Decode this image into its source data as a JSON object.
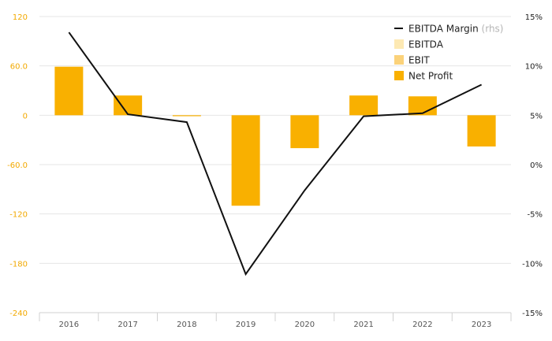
{
  "chart_data": {
    "type": "bar",
    "categories": [
      "2016",
      "2017",
      "2018",
      "2019",
      "2020",
      "2021",
      "2022",
      "2023"
    ],
    "series": [
      {
        "name": "EBITDA",
        "type": "bar",
        "axis": "left",
        "color": "#fde9b3",
        "values": [
          null,
          null,
          null,
          null,
          null,
          null,
          null,
          null
        ]
      },
      {
        "name": "EBIT",
        "type": "bar",
        "axis": "left",
        "color": "#fbd27a",
        "values": [
          null,
          null,
          null,
          null,
          null,
          null,
          null,
          null
        ]
      },
      {
        "name": "Net Profit",
        "type": "bar",
        "axis": "left",
        "color": "#f9b000",
        "values": [
          59,
          24,
          -1,
          -110,
          -40,
          24,
          23,
          -38
        ]
      },
      {
        "name": "EBITDA Margin",
        "type": "line",
        "axis": "right",
        "color": "#111111",
        "values": [
          13.4,
          5.1,
          4.3,
          -11.1,
          -2.6,
          4.9,
          5.2,
          8.1
        ]
      }
    ],
    "legend_note": "(rhs)",
    "y_left": {
      "ylim": [
        -240,
        120
      ],
      "ticks": [
        "120",
        "60.0",
        "0",
        "-60.0",
        "-120",
        "-180",
        "-240"
      ],
      "tick_color": "#f2a900"
    },
    "y_right": {
      "ylim": [
        -15,
        15
      ],
      "ticks": [
        "15%",
        "10%",
        "5%",
        "0%",
        "-5%",
        "-10%",
        "-15%"
      ]
    },
    "grid": true,
    "legend_position": "top-right"
  }
}
